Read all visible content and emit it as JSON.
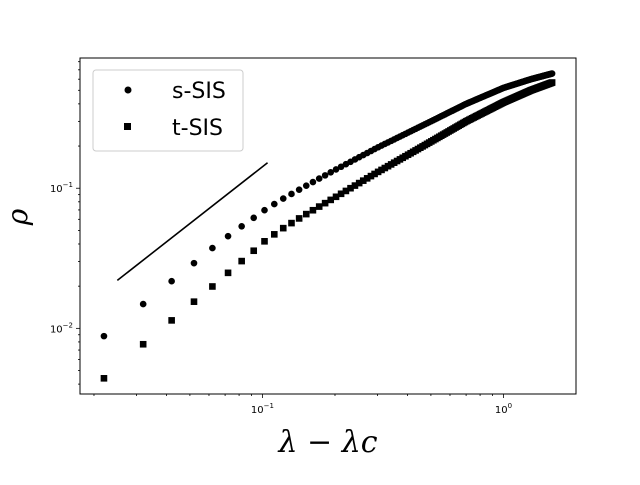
{
  "chart_data": {
    "type": "scatter",
    "x_scale": "log",
    "y_scale": "log",
    "xlim": [
      0.0175,
      2.0
    ],
    "ylim": [
      0.0034,
      0.85
    ],
    "xlabel": "λ − λc",
    "ylabel": "ρ",
    "x_ticks": [
      {
        "value": 0.1,
        "label_base": "10",
        "label_exp": "−1"
      },
      {
        "value": 1.0,
        "label_base": "10",
        "label_exp": "0"
      }
    ],
    "y_ticks": [
      {
        "value": 0.01,
        "label_base": "10",
        "label_exp": "−2"
      },
      {
        "value": 0.1,
        "label_base": "10",
        "label_exp": "−1"
      }
    ],
    "grid": false,
    "legend_position": "upper-left",
    "reference_line": {
      "x": [
        0.025,
        0.105
      ],
      "y": [
        0.022,
        0.152
      ],
      "color": "#000000"
    },
    "series": [
      {
        "name": "s-SIS",
        "marker": "circle",
        "color": "#000000",
        "anchors": [
          [
            0.022,
            0.0088
          ],
          [
            0.032,
            0.0149
          ],
          [
            0.042,
            0.0217
          ],
          [
            0.052,
            0.0292
          ],
          [
            0.062,
            0.0374
          ],
          [
            0.072,
            0.0455
          ],
          [
            0.082,
            0.0535
          ],
          [
            0.092,
            0.0615
          ],
          [
            0.102,
            0.0697
          ],
          [
            0.12,
            0.083
          ],
          [
            0.15,
            0.103
          ],
          [
            0.2,
            0.135
          ],
          [
            0.3,
            0.195
          ],
          [
            0.5,
            0.3
          ],
          [
            0.7,
            0.4
          ],
          [
            1.0,
            0.52
          ],
          [
            1.3,
            0.6
          ],
          [
            1.6,
            0.66
          ]
        ]
      },
      {
        "name": "t-SIS",
        "marker": "square",
        "color": "#000000",
        "anchors": [
          [
            0.022,
            0.0044
          ],
          [
            0.032,
            0.0077
          ],
          [
            0.042,
            0.0114
          ],
          [
            0.052,
            0.0155
          ],
          [
            0.062,
            0.0199
          ],
          [
            0.072,
            0.0249
          ],
          [
            0.082,
            0.0302
          ],
          [
            0.092,
            0.0358
          ],
          [
            0.102,
            0.0418
          ],
          [
            0.12,
            0.051
          ],
          [
            0.15,
            0.0645
          ],
          [
            0.2,
            0.086
          ],
          [
            0.3,
            0.13
          ],
          [
            0.5,
            0.215
          ],
          [
            0.7,
            0.3
          ],
          [
            1.0,
            0.41
          ],
          [
            1.3,
            0.5
          ],
          [
            1.6,
            0.57
          ]
        ]
      }
    ]
  }
}
